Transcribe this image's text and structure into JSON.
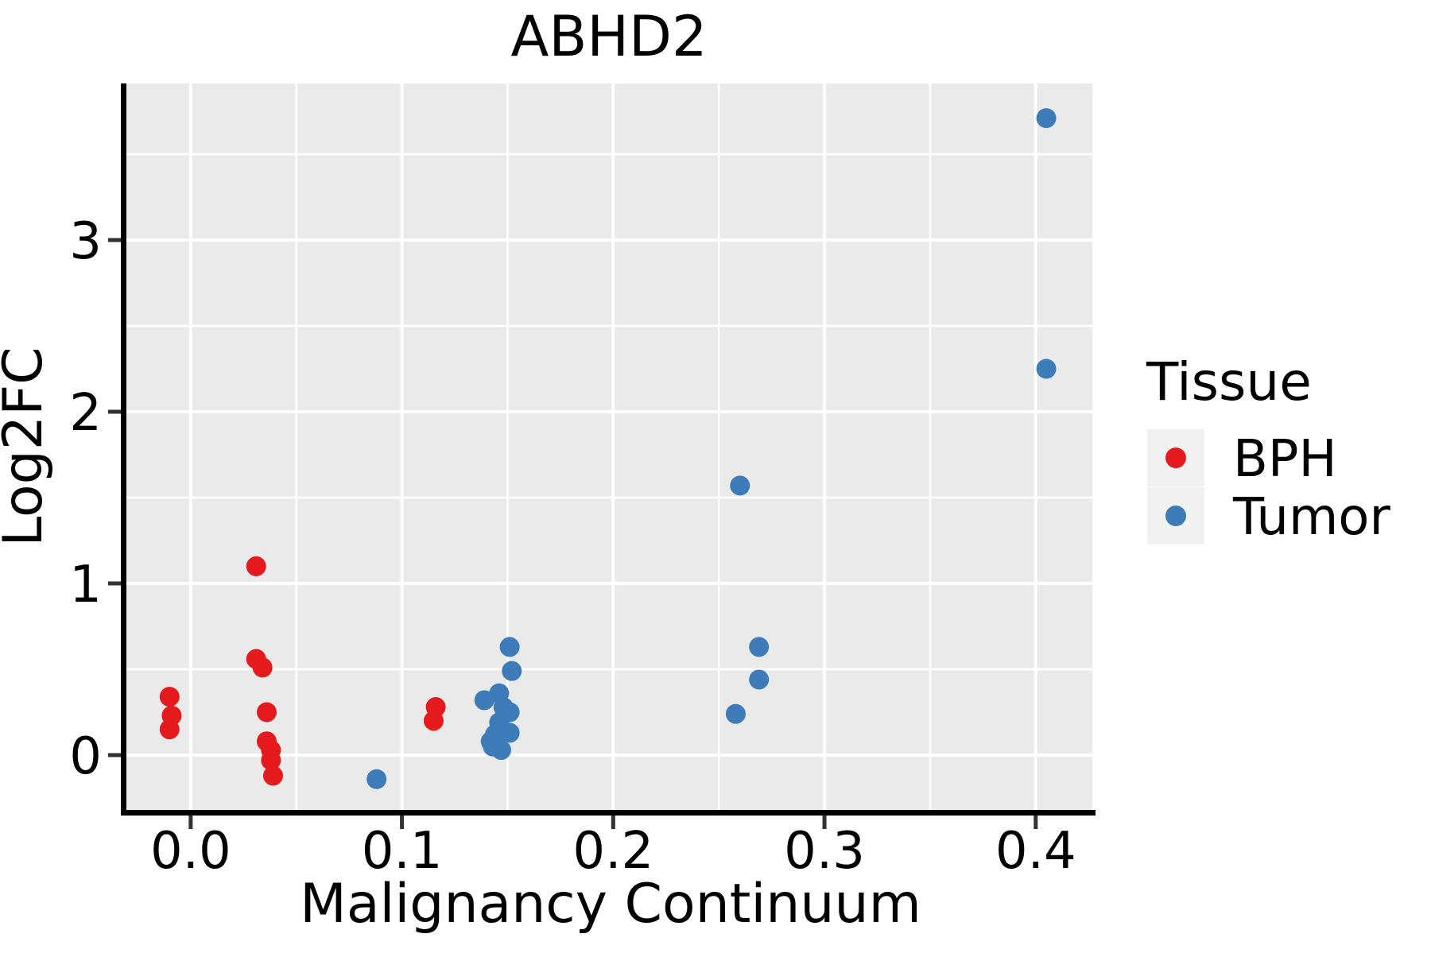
{
  "title": "ABHD2",
  "colors": {
    "bph": "#E41A1C",
    "tumor": "#3D7CB8",
    "panel_background": "#EAEAEA",
    "gridline": "#FFFFFF",
    "axis_line": "#000000",
    "tick_mark": "#333333",
    "legend_key_background": "#F1F1F1",
    "text": "#000000"
  },
  "chart_data": {
    "type": "scatter",
    "title": "ABHD2",
    "xlabel": "Malignancy Continuum",
    "ylabel": "Log2FC",
    "xlim": [
      -0.0308,
      0.4268
    ],
    "ylim": [
      -0.324,
      3.912
    ],
    "grid": true,
    "x_ticks": [
      {
        "value": 0.0,
        "label": "0.0"
      },
      {
        "value": 0.1,
        "label": "0.1"
      },
      {
        "value": 0.2,
        "label": "0.2"
      },
      {
        "value": 0.3,
        "label": "0.3"
      },
      {
        "value": 0.4,
        "label": "0.4"
      }
    ],
    "y_ticks": [
      {
        "value": 0,
        "label": "0"
      },
      {
        "value": 1,
        "label": "1"
      },
      {
        "value": 2,
        "label": "2"
      },
      {
        "value": 3,
        "label": "3"
      }
    ],
    "x_minor": [
      0.05,
      0.15,
      0.25,
      0.35
    ],
    "y_minor": [
      0.5,
      1.5,
      2.5,
      3.5
    ],
    "legend_title": "Tissue",
    "legend_position": "right",
    "marker_radius_px": 12.5,
    "series": [
      {
        "name": "BPH",
        "color": "#E41A1C",
        "points": [
          [
            -0.01,
            0.34
          ],
          [
            -0.009,
            0.23
          ],
          [
            -0.01,
            0.15
          ],
          [
            0.031,
            1.1
          ],
          [
            0.031,
            0.56
          ],
          [
            0.034,
            0.51
          ],
          [
            0.036,
            0.25
          ],
          [
            0.036,
            0.08
          ],
          [
            0.038,
            0.03
          ],
          [
            0.038,
            -0.03
          ],
          [
            0.039,
            -0.12
          ],
          [
            0.116,
            0.28
          ],
          [
            0.115,
            0.2
          ]
        ]
      },
      {
        "name": "Tumor",
        "color": "#3D7CB8",
        "points": [
          [
            0.088,
            -0.14
          ],
          [
            0.151,
            0.63
          ],
          [
            0.152,
            0.49
          ],
          [
            0.146,
            0.36
          ],
          [
            0.139,
            0.32
          ],
          [
            0.148,
            0.28
          ],
          [
            0.151,
            0.25
          ],
          [
            0.146,
            0.19
          ],
          [
            0.151,
            0.13
          ],
          [
            0.144,
            0.12
          ],
          [
            0.142,
            0.08
          ],
          [
            0.143,
            0.05
          ],
          [
            0.147,
            0.03
          ],
          [
            0.26,
            1.57
          ],
          [
            0.258,
            0.24
          ],
          [
            0.269,
            0.63
          ],
          [
            0.269,
            0.44
          ],
          [
            0.405,
            3.71
          ],
          [
            0.405,
            2.25
          ]
        ]
      }
    ]
  }
}
